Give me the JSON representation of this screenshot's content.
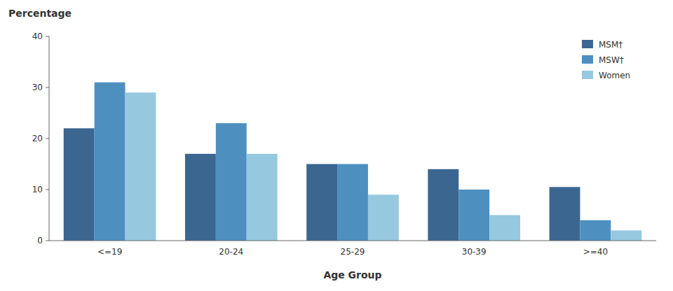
{
  "chart_data": {
    "type": "bar",
    "xlabel": "Age Group",
    "ylabel": "Percentage",
    "categories": [
      "<=19",
      "20-24",
      "25-29",
      "30-39",
      ">=40"
    ],
    "series": [
      {
        "name": "MSM†",
        "color": "#3a6690",
        "values": [
          22,
          17,
          15,
          14,
          10.5
        ]
      },
      {
        "name": "MSW†",
        "color": "#4d90c0",
        "values": [
          31,
          23,
          15,
          10,
          4
        ]
      },
      {
        "name": "Women",
        "color": "#96c8e0",
        "values": [
          29,
          17,
          9,
          5,
          2
        ]
      }
    ],
    "ylim": [
      0,
      40
    ],
    "yticks": [
      0,
      10,
      20,
      30,
      40
    ],
    "grid": false,
    "legend": "upper right"
  }
}
